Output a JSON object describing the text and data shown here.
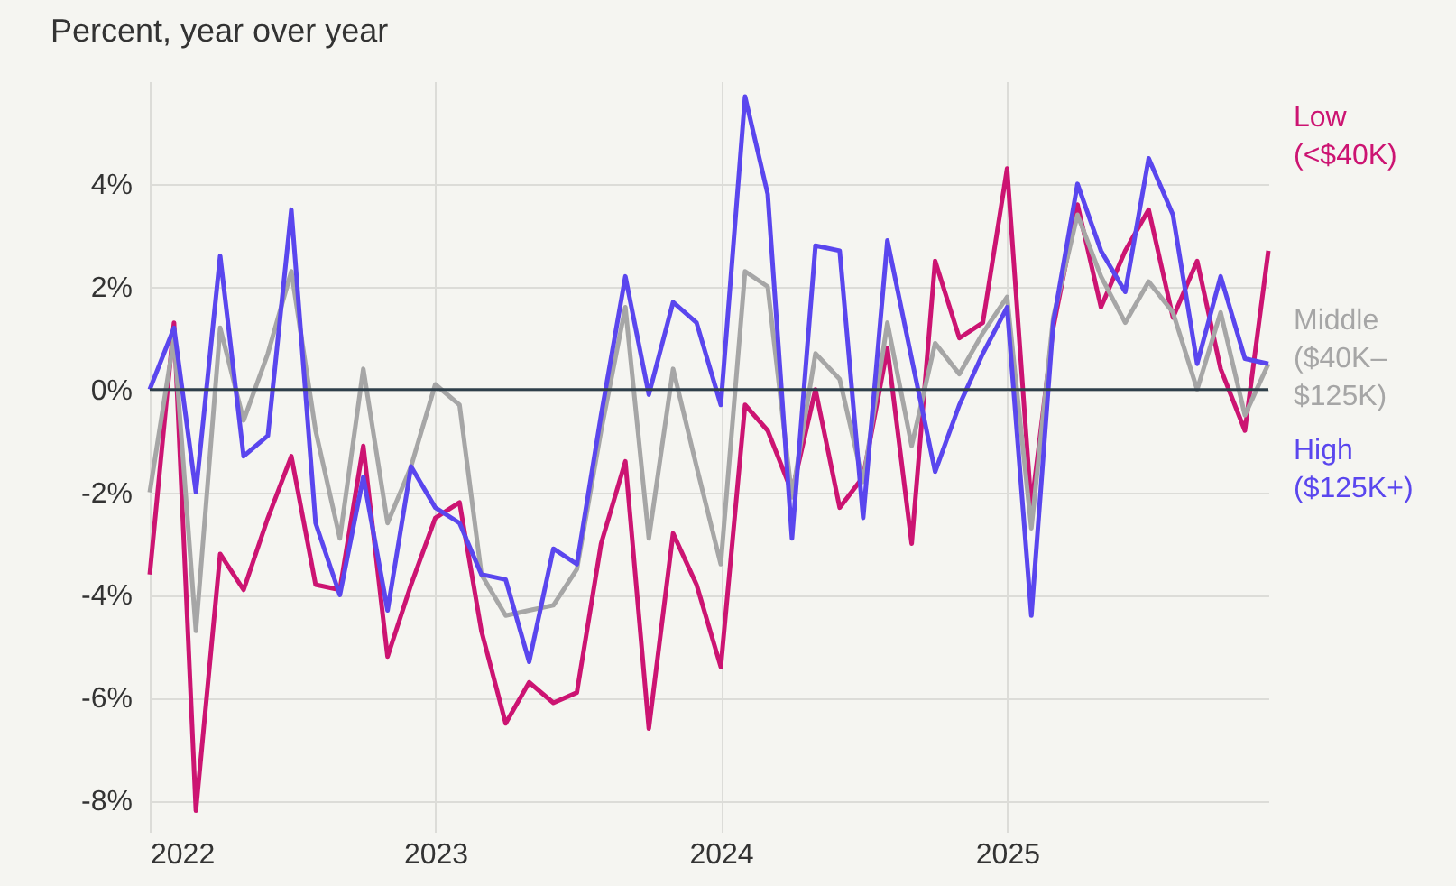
{
  "chart_data": {
    "type": "line",
    "title": "Percent, year over year",
    "x": [
      "2022-01",
      "2022-02",
      "2022-03",
      "2022-04",
      "2022-05",
      "2022-06",
      "2022-07",
      "2022-08",
      "2022-09",
      "2022-10",
      "2022-11",
      "2022-12",
      "2023-01",
      "2023-02",
      "2023-03",
      "2023-04",
      "2023-05",
      "2023-06",
      "2023-07",
      "2023-08",
      "2023-09",
      "2023-10",
      "2023-11",
      "2023-12",
      "2024-01",
      "2024-02",
      "2024-03",
      "2024-04",
      "2024-05",
      "2024-06",
      "2024-07",
      "2024-08",
      "2024-09",
      "2024-10",
      "2024-11",
      "2024-12",
      "2025-01",
      "2025-02",
      "2025-03",
      "2025-04",
      "2025-05",
      "2025-06",
      "2025-07",
      "2025-08",
      "2025-09",
      "2025-10",
      "2025-11",
      "2025-12"
    ],
    "series": [
      {
        "name": "Low (<$40K)",
        "color": "#cc1472",
        "values": [
          -3.6,
          1.3,
          -8.2,
          -3.2,
          -3.9,
          -2.5,
          -1.3,
          -3.8,
          -3.9,
          -1.1,
          -5.2,
          -3.8,
          -2.5,
          -2.2,
          -4.7,
          -6.5,
          -5.7,
          -6.1,
          -5.9,
          -3.0,
          -1.4,
          -6.6,
          -2.8,
          -3.8,
          -5.4,
          -0.3,
          -0.8,
          -2.0,
          0.0,
          -2.3,
          -1.7,
          0.8,
          -3.0,
          2.5,
          1.0,
          1.3,
          4.3,
          -2.3,
          1.2,
          3.6,
          1.6,
          2.7,
          3.5,
          1.4,
          2.5,
          0.4,
          -0.8,
          2.7
        ]
      },
      {
        "name": "Middle ($40K–$125K)",
        "color": "#a6a6a6",
        "values": [
          -2.0,
          1.0,
          -4.7,
          1.2,
          -0.6,
          0.7,
          2.3,
          -0.8,
          -2.9,
          0.4,
          -2.6,
          -1.5,
          0.1,
          -0.3,
          -3.6,
          -4.4,
          -4.3,
          -4.2,
          -3.5,
          -0.8,
          1.6,
          -2.9,
          0.4,
          -1.5,
          -3.4,
          2.3,
          2.0,
          -2.1,
          0.7,
          0.2,
          -1.8,
          1.3,
          -1.1,
          0.9,
          0.3,
          1.1,
          1.8,
          -2.7,
          1.4,
          3.4,
          2.2,
          1.3,
          2.1,
          1.5,
          0.0,
          1.5,
          -0.5,
          0.5
        ]
      },
      {
        "name": "High ($125K+)",
        "color": "#5a46ee",
        "values": [
          0.0,
          1.2,
          -2.0,
          2.6,
          -1.3,
          -0.9,
          3.5,
          -2.6,
          -4.0,
          -1.7,
          -4.3,
          -1.5,
          -2.3,
          -2.6,
          -3.6,
          -3.7,
          -5.3,
          -3.1,
          -3.4,
          -0.5,
          2.2,
          -0.1,
          1.7,
          1.3,
          -0.3,
          5.7,
          3.8,
          -2.9,
          2.8,
          2.7,
          -2.5,
          2.9,
          0.6,
          -1.6,
          -0.3,
          0.7,
          1.6,
          -4.4,
          1.3,
          4.0,
          2.7,
          1.9,
          4.5,
          3.4,
          0.5,
          2.2,
          0.6,
          0.5
        ]
      }
    ],
    "xlim": [
      "2022-01",
      "2025-12"
    ],
    "xticks": [
      {
        "value": "2022-01",
        "label": "2022"
      },
      {
        "value": "2023-01",
        "label": "2023"
      },
      {
        "value": "2024-01",
        "label": "2024"
      },
      {
        "value": "2025-01",
        "label": "2025"
      }
    ],
    "ylim": [
      -8.4,
      6
    ],
    "yticks": [
      {
        "value": -8,
        "label": "-8%"
      },
      {
        "value": -6,
        "label": "-6%"
      },
      {
        "value": -4,
        "label": "-4%"
      },
      {
        "value": -2,
        "label": "-2%"
      },
      {
        "value": 0,
        "label": "0%"
      },
      {
        "value": 2,
        "label": "2%"
      },
      {
        "value": 4,
        "label": "4%"
      }
    ],
    "ref_lines": [
      {
        "axis": "y",
        "value": 0,
        "label": null,
        "color": "#2e3f4a"
      }
    ],
    "grid": true,
    "legend": false,
    "line_style": "solid"
  }
}
